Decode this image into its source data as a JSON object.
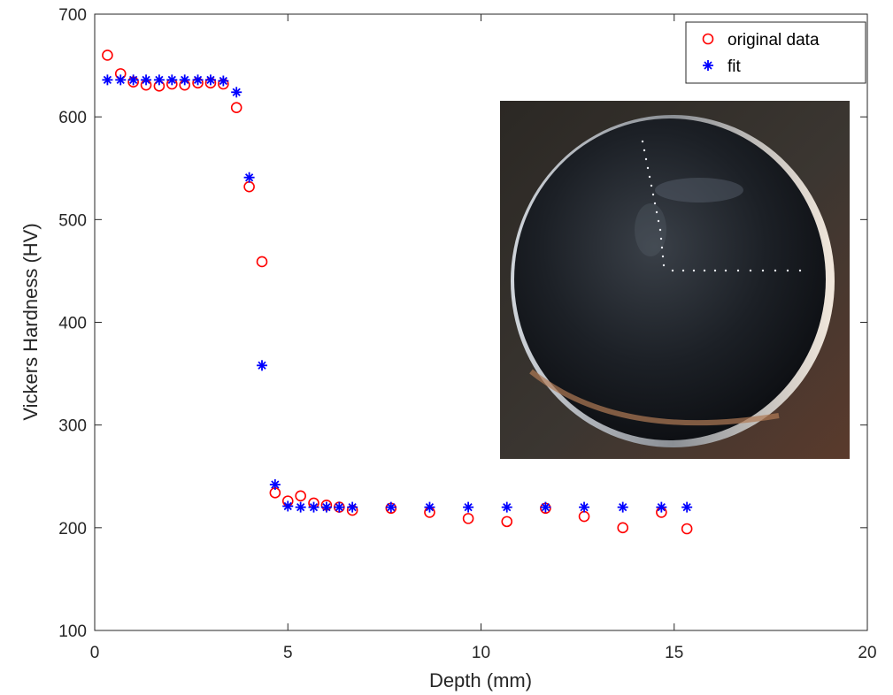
{
  "chart_data": {
    "type": "scatter",
    "xlabel": "Depth (mm)",
    "ylabel": "Vickers Hardness (HV)",
    "xlim": [
      0,
      20
    ],
    "ylim": [
      100,
      700
    ],
    "xticks": [
      0,
      5,
      10,
      15,
      20
    ],
    "yticks": [
      100,
      200,
      300,
      400,
      500,
      600,
      700
    ],
    "grid": false,
    "legend_position": "top-right",
    "series": [
      {
        "name": "original data",
        "marker": "circle",
        "color": "#ff0000",
        "points": [
          [
            0.33,
            660
          ],
          [
            0.67,
            642
          ],
          [
            1.0,
            634
          ],
          [
            1.33,
            631
          ],
          [
            1.67,
            630
          ],
          [
            2.0,
            632
          ],
          [
            2.33,
            631
          ],
          [
            2.67,
            633
          ],
          [
            3.0,
            633
          ],
          [
            3.33,
            632
          ],
          [
            3.67,
            609
          ],
          [
            4.0,
            532
          ],
          [
            4.33,
            459
          ],
          [
            4.67,
            234
          ],
          [
            5.0,
            226
          ],
          [
            5.33,
            231
          ],
          [
            5.67,
            224
          ],
          [
            6.0,
            222
          ],
          [
            6.33,
            220
          ],
          [
            6.67,
            217
          ],
          [
            7.67,
            219
          ],
          [
            8.67,
            215
          ],
          [
            9.67,
            209
          ],
          [
            10.67,
            206
          ],
          [
            11.67,
            219
          ],
          [
            12.67,
            211
          ],
          [
            13.67,
            200
          ],
          [
            14.67,
            215
          ],
          [
            15.33,
            199
          ]
        ]
      },
      {
        "name": "fit",
        "marker": "asterisk",
        "color": "#0000ff",
        "points": [
          [
            0.33,
            636
          ],
          [
            0.67,
            636
          ],
          [
            1.0,
            636
          ],
          [
            1.33,
            636
          ],
          [
            1.67,
            636
          ],
          [
            2.0,
            636
          ],
          [
            2.33,
            636
          ],
          [
            2.67,
            636
          ],
          [
            3.0,
            636
          ],
          [
            3.33,
            635
          ],
          [
            3.67,
            624
          ],
          [
            4.0,
            541
          ],
          [
            4.33,
            358
          ],
          [
            4.67,
            242
          ],
          [
            5.0,
            221
          ],
          [
            5.33,
            220
          ],
          [
            5.67,
            220
          ],
          [
            6.0,
            220
          ],
          [
            6.33,
            220
          ],
          [
            6.67,
            220
          ],
          [
            7.67,
            220
          ],
          [
            8.67,
            220
          ],
          [
            9.67,
            220
          ],
          [
            10.67,
            220
          ],
          [
            11.67,
            220
          ],
          [
            12.67,
            220
          ],
          [
            13.67,
            220
          ],
          [
            14.67,
            220
          ],
          [
            15.33,
            220
          ]
        ]
      }
    ],
    "inset_image": {
      "description_icon": "polished-round-specimen-photo"
    }
  }
}
